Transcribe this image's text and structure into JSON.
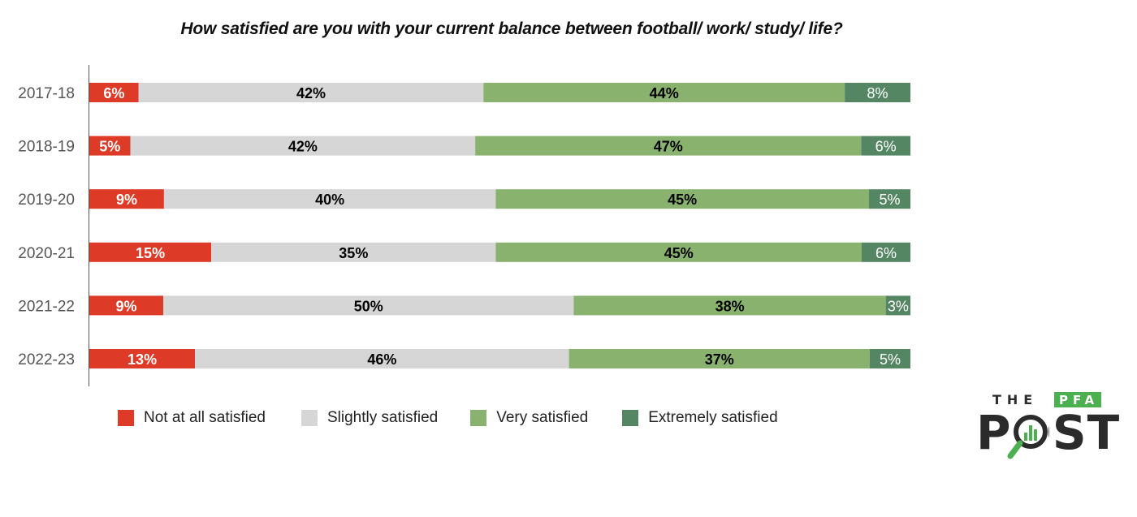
{
  "chart_data": {
    "type": "bar",
    "orientation": "horizontal",
    "stacked": true,
    "title": "How satisfied are you with your current balance between football/ work/ study/ life?",
    "xlabel": "",
    "ylabel": "",
    "xlim": [
      0,
      100
    ],
    "grid": false,
    "legend_position": "bottom",
    "categories": [
      "2017-18",
      "2018-19",
      "2019-20",
      "2020-21",
      "2021-22",
      "2022-23"
    ],
    "series": [
      {
        "name": "Not at all satisfied",
        "color": "#dd3b27",
        "label_color": "#ffffff",
        "values": [
          6,
          5,
          9,
          15,
          9,
          13
        ],
        "labels": [
          "6%",
          "5%",
          "9%",
          "15%",
          "9%",
          "13%"
        ]
      },
      {
        "name": "Slightly satisfied",
        "color": "#d6d6d6",
        "label_color": "#000000",
        "values": [
          42,
          42,
          40,
          35,
          50,
          46
        ],
        "labels": [
          "42%",
          "42%",
          "40%",
          "35%",
          "50%",
          "46%"
        ]
      },
      {
        "name": "Very satisfied",
        "color": "#88b26d",
        "label_color": "#000000",
        "values": [
          44,
          47,
          45,
          45,
          38,
          37
        ],
        "labels": [
          "44%",
          "47%",
          "45%",
          "45%",
          "38%",
          "37%"
        ]
      },
      {
        "name": "Extremely satisfied",
        "color": "#558663",
        "label_color": "#ffffff",
        "values": [
          8,
          6,
          5,
          6,
          3,
          5
        ],
        "labels": [
          "8%",
          "6%",
          "5%",
          "6%",
          "3%",
          "5%"
        ]
      }
    ]
  },
  "logo": {
    "the": "THE",
    "pfa": "PFA",
    "post": "POST",
    "accent_color": "#4caf50",
    "text_color": "#2b2b2b"
  }
}
